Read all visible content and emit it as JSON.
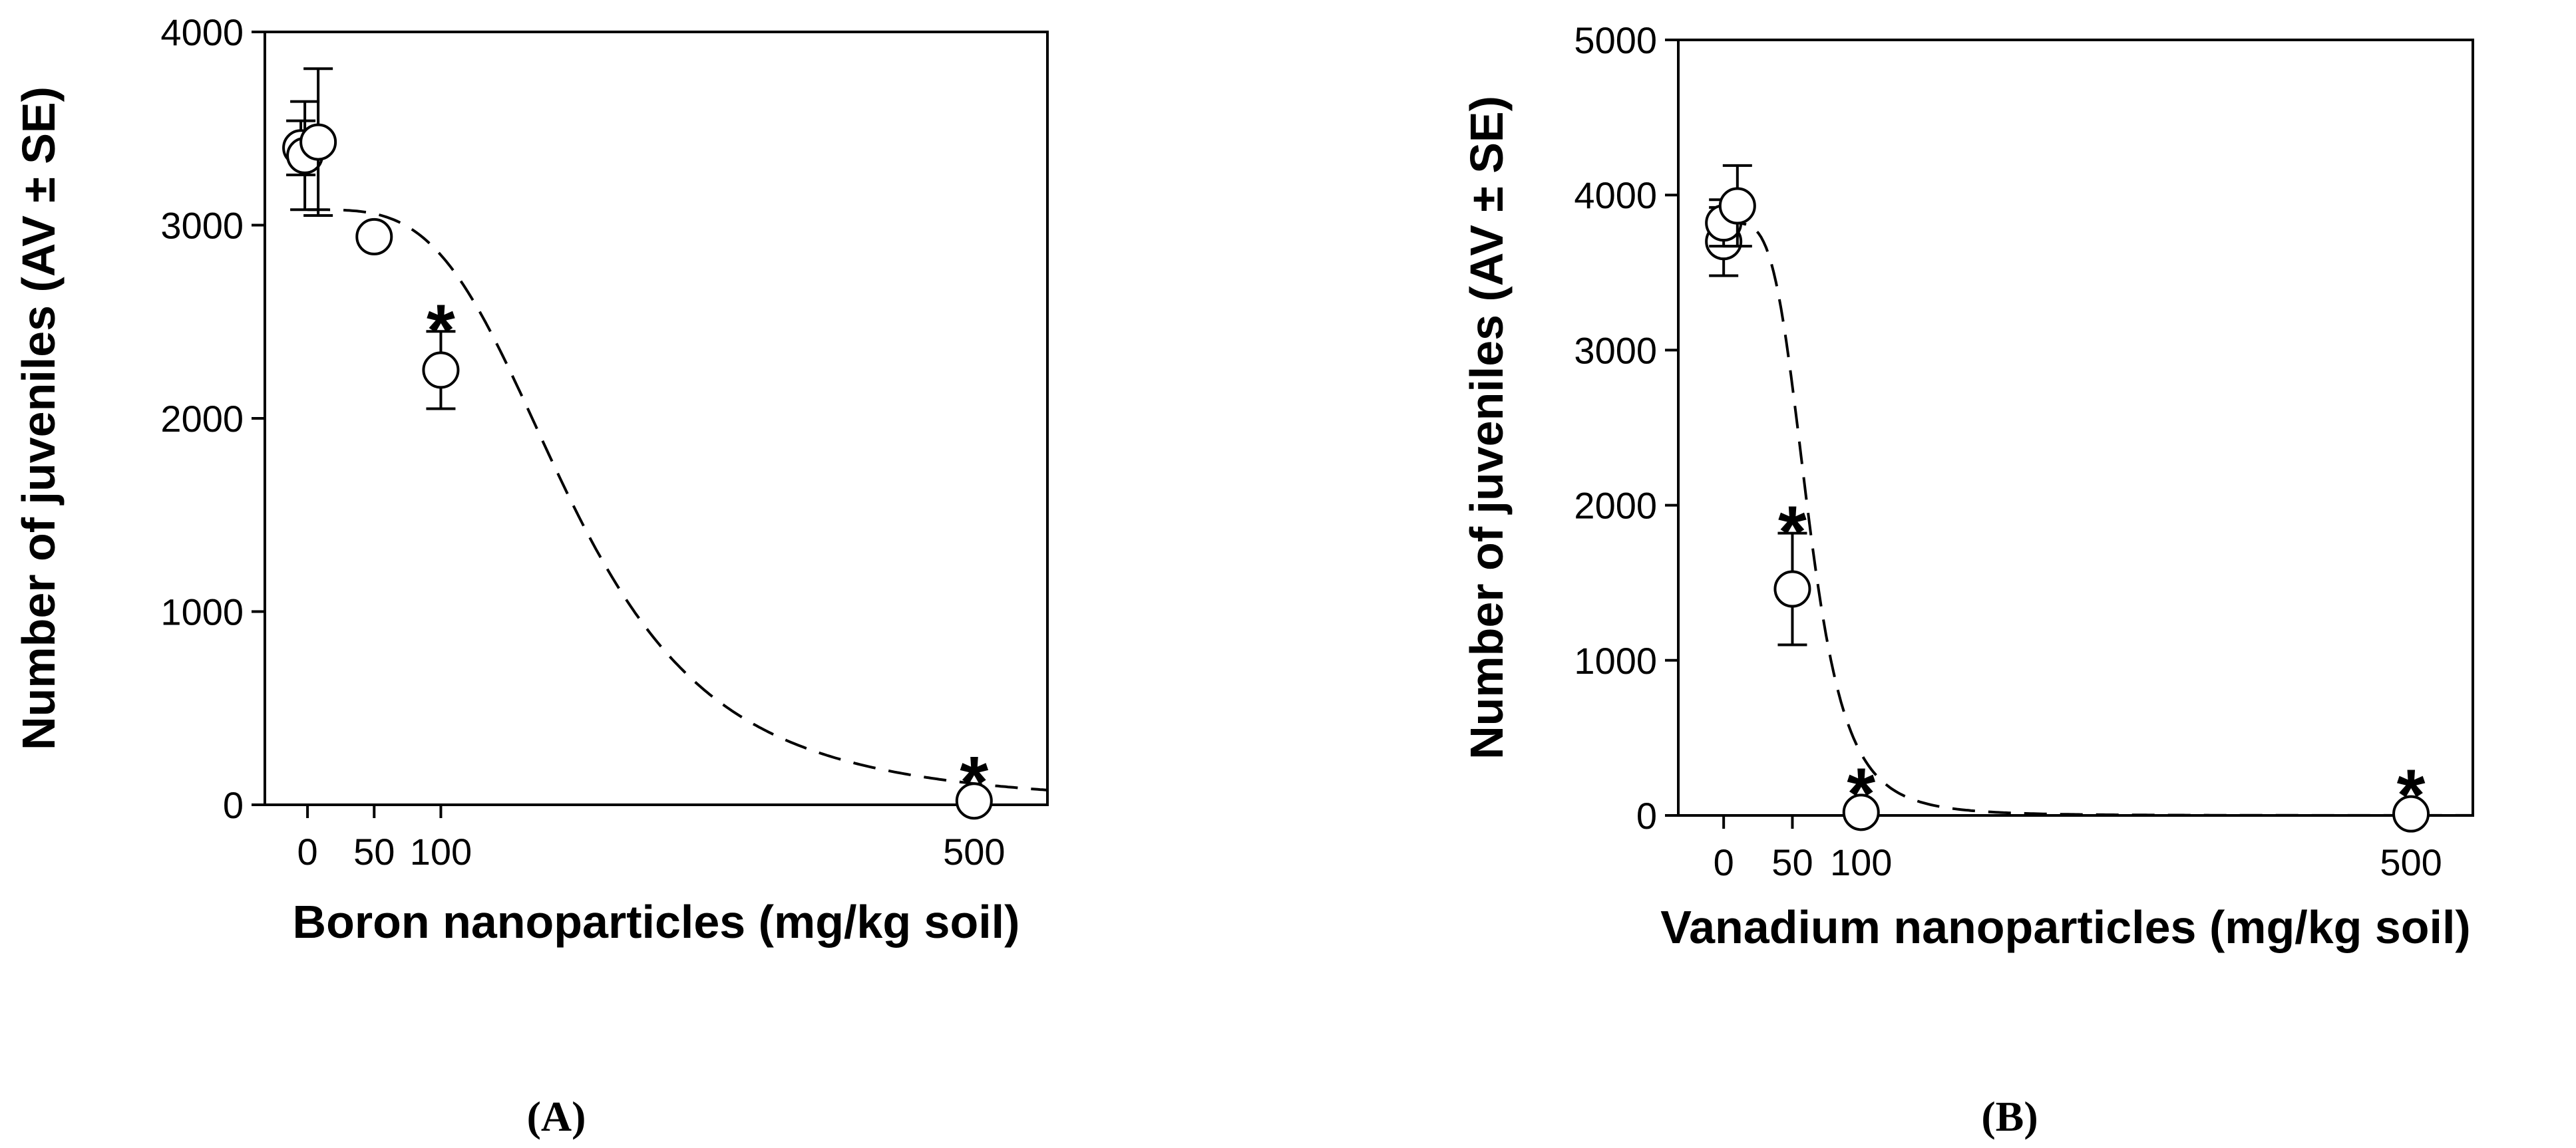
{
  "chart_data": [
    {
      "type": "scatter",
      "panel_label": "(A)",
      "xlabel": "Boron nanoparticles (mg/kg soil)",
      "ylabel": "Number of juveniles (AV ± SE)",
      "ylim": [
        0,
        4000
      ],
      "yticks": [
        0,
        1000,
        2000,
        3000,
        4000
      ],
      "xticks": [
        {
          "value": 0,
          "label": "0"
        },
        {
          "value": 50,
          "label": "50"
        },
        {
          "value": 100,
          "label": "100"
        },
        {
          "value": 500,
          "label": "500"
        }
      ],
      "points": [
        {
          "x": -5,
          "y": 3400,
          "se": 140,
          "star": false
        },
        {
          "x": -2,
          "y": 3360,
          "se": 280,
          "star": false
        },
        {
          "x": 8,
          "y": 3430,
          "se": 380,
          "star": false
        },
        {
          "x": 50,
          "y": 2940,
          "se": 0,
          "star": false
        },
        {
          "x": 100,
          "y": 2250,
          "se": 200,
          "star": true
        },
        {
          "x": 500,
          "y": 20,
          "se": 0,
          "star": true
        }
      ],
      "fit": {
        "style": "dashed",
        "model": "logistic",
        "top": 3080,
        "ec50": 200,
        "slope": 3.6
      }
    },
    {
      "type": "scatter",
      "panel_label": "(B)",
      "xlabel": "Vanadium nanoparticles (mg/kg soil)",
      "ylabel": "Number of juveniles (AV ± SE)",
      "ylim": [
        0,
        5000
      ],
      "yticks": [
        0,
        1000,
        2000,
        3000,
        4000,
        5000
      ],
      "xticks": [
        {
          "value": 0,
          "label": "0"
        },
        {
          "value": 50,
          "label": "50"
        },
        {
          "value": 100,
          "label": "100"
        },
        {
          "value": 500,
          "label": "500"
        }
      ],
      "points": [
        {
          "x": 0,
          "y": 3700,
          "se": 220,
          "star": false
        },
        {
          "x": 0,
          "y": 3820,
          "se": 150,
          "star": false
        },
        {
          "x": 10,
          "y": 3930,
          "se": 260,
          "star": false
        },
        {
          "x": 50,
          "y": 1460,
          "se": 360,
          "star": true
        },
        {
          "x": 100,
          "y": 20,
          "se": 0,
          "star": true
        },
        {
          "x": 500,
          "y": 10,
          "se": 0,
          "star": true
        }
      ],
      "fit": {
        "style": "dashed",
        "model": "logistic",
        "top": 3820,
        "ec50": 62,
        "slope": 4.5
      }
    }
  ]
}
